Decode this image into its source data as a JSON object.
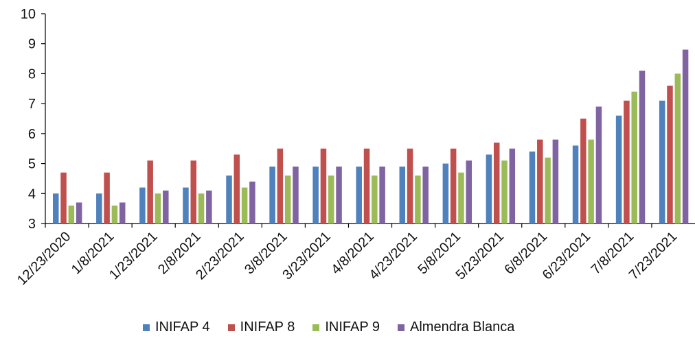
{
  "chart_data": {
    "type": "bar",
    "categories": [
      "12/23/2020",
      "1/8/2021",
      "1/23/2021",
      "2/8/2021",
      "2/23/2021",
      "3/8/2021",
      "3/23/2021",
      "4/8/2021",
      "4/23/2021",
      "5/8/2021",
      "5/23/2021",
      "6/8/2021",
      "6/23/2021",
      "7/8/2021",
      "7/23/2021"
    ],
    "series": [
      {
        "name": "INIFAP 4",
        "color": "#4f81bd",
        "values": [
          4.0,
          4.0,
          4.2,
          4.2,
          4.6,
          4.9,
          4.9,
          4.9,
          4.9,
          5.0,
          5.3,
          5.4,
          5.6,
          6.6,
          7.1
        ]
      },
      {
        "name": "INIFAP 8",
        "color": "#c0504d",
        "values": [
          4.7,
          4.7,
          5.1,
          5.1,
          5.3,
          5.5,
          5.5,
          5.5,
          5.5,
          5.5,
          5.7,
          5.8,
          6.5,
          7.1,
          7.6
        ]
      },
      {
        "name": "INIFAP 9",
        "color": "#9bbb59",
        "values": [
          3.6,
          3.6,
          4.0,
          4.0,
          4.2,
          4.6,
          4.6,
          4.6,
          4.6,
          4.7,
          5.1,
          5.2,
          5.8,
          7.4,
          8.0
        ]
      },
      {
        "name": "Almendra Blanca",
        "color": "#8064a2",
        "values": [
          3.7,
          3.7,
          4.1,
          4.1,
          4.4,
          4.9,
          4.9,
          4.9,
          4.9,
          5.1,
          5.5,
          5.8,
          6.9,
          8.1,
          8.8
        ]
      }
    ],
    "ylim": [
      3,
      10
    ],
    "yticks": [
      "3",
      "4",
      "5",
      "6",
      "7",
      "8",
      "9",
      "10"
    ],
    "grid": false,
    "legend_position": "bottom",
    "xlabel": "",
    "ylabel": "",
    "title": ""
  }
}
